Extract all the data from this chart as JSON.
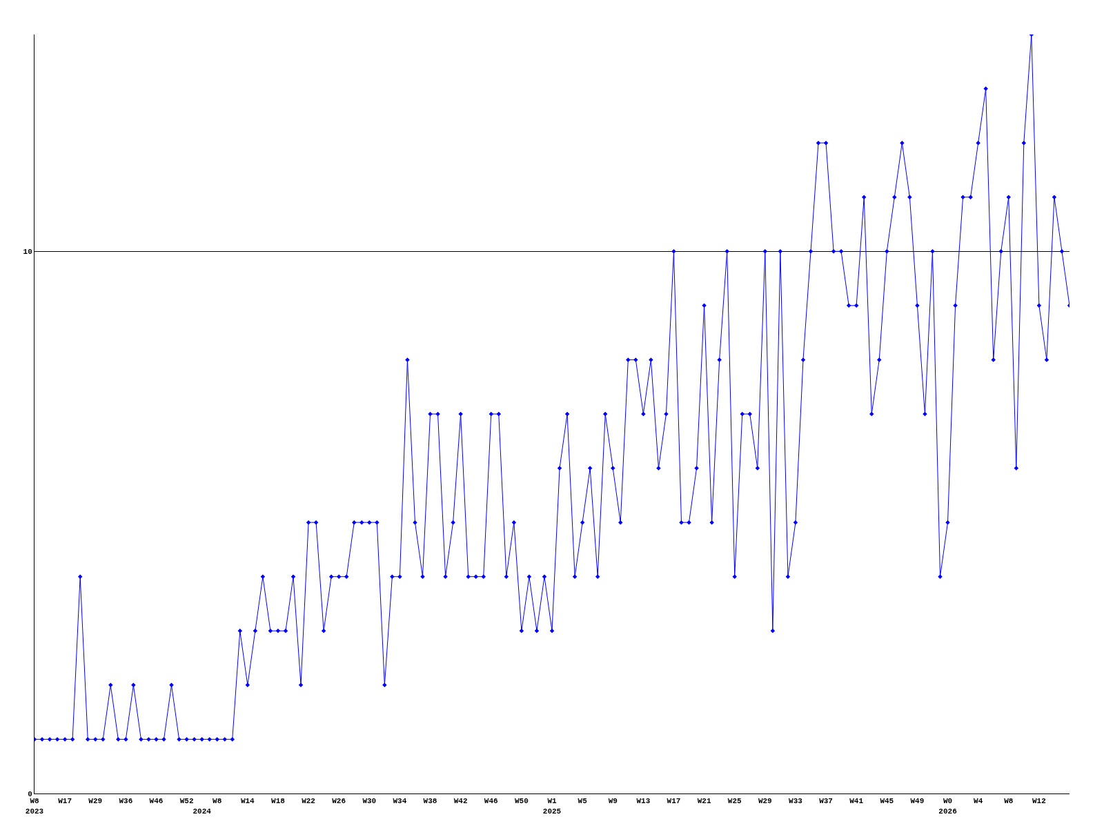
{
  "chart_data": {
    "type": "line",
    "categories": [
      "W8\n2023",
      null,
      null,
      null,
      "W17",
      null,
      null,
      null,
      "W29",
      null,
      null,
      null,
      "W36",
      null,
      null,
      null,
      "W46",
      null,
      null,
      null,
      "W52",
      null,
      "\n2024",
      null,
      "W8",
      null,
      null,
      null,
      "W14",
      null,
      null,
      null,
      "W18",
      null,
      null,
      null,
      "W22",
      null,
      null,
      null,
      "W26",
      null,
      null,
      null,
      "W30",
      null,
      null,
      null,
      "W34",
      null,
      null,
      null,
      "W38",
      null,
      null,
      null,
      "W42",
      null,
      null,
      null,
      "W46",
      null,
      null,
      null,
      "W50",
      null,
      null,
      null,
      "W1\n2025",
      null,
      null,
      null,
      "W5",
      null,
      null,
      null,
      "W9",
      null,
      null,
      null,
      "W13",
      null,
      null,
      null,
      "W17",
      null,
      null,
      null,
      "W21",
      null,
      null,
      null,
      "W25",
      null,
      null,
      null,
      "W29",
      null,
      null,
      null,
      "W33",
      null,
      null,
      null,
      "W37",
      null,
      null,
      null,
      "W41",
      null,
      null,
      null,
      "W45",
      null,
      null,
      null,
      "W49",
      null,
      null,
      null,
      "W0\n2026",
      null,
      null,
      null,
      "W4",
      null,
      null,
      null,
      "W8",
      null,
      null,
      null,
      "W12",
      null,
      null,
      null,
      null
    ],
    "series": [
      {
        "color": "#0000ff",
        "values": [
          1,
          1,
          1,
          1,
          1,
          1,
          4,
          1,
          1,
          1,
          2,
          1,
          1,
          2,
          1,
          1,
          1,
          1,
          2,
          1,
          1,
          1,
          1,
          1,
          1,
          1,
          1,
          3,
          2,
          3,
          4,
          3,
          3,
          3,
          4,
          2,
          5,
          5,
          3,
          4,
          4,
          4,
          5,
          5,
          5,
          5,
          2,
          4,
          4,
          8,
          5,
          4,
          7,
          7,
          4,
          5,
          7,
          4,
          4,
          4,
          7,
          7,
          4,
          5,
          3,
          4,
          3,
          4,
          3,
          6,
          7,
          4,
          5,
          6,
          4,
          7,
          6,
          5,
          8,
          8,
          7,
          8,
          6,
          7,
          10,
          5,
          5,
          6,
          9,
          5,
          8,
          10,
          4,
          7,
          7,
          6,
          10,
          3,
          10,
          4,
          5,
          8,
          10,
          12,
          12,
          10,
          10,
          9,
          9,
          11,
          7,
          8,
          10,
          11,
          12,
          11,
          9,
          7,
          10,
          4,
          5,
          9,
          11,
          11,
          12,
          13,
          8,
          10,
          11,
          6,
          12,
          14,
          9,
          8,
          11,
          10,
          9
        ]
      }
    ],
    "ylim": [
      0,
      14
    ],
    "yticks": [
      0,
      10
    ],
    "grid": "y",
    "marker": "diamond",
    "line_style": "solid"
  }
}
